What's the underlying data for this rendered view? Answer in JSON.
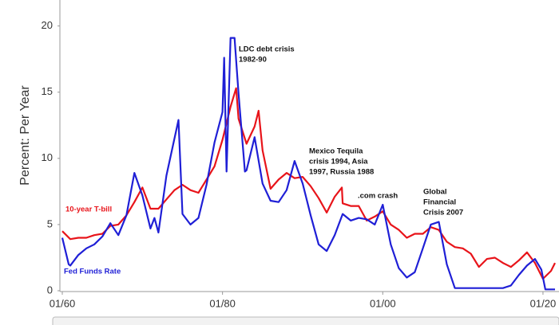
{
  "chart_data": {
    "type": "line",
    "y_label": "Percent: Per Year",
    "xlim": [
      1960,
      2022
    ],
    "ylim": [
      0,
      21
    ],
    "xticks": [
      {
        "value": 1960,
        "label": "01/60"
      },
      {
        "value": 1980,
        "label": "01/80"
      },
      {
        "value": 2000,
        "label": "01/00"
      },
      {
        "value": 2020,
        "label": "01/20"
      }
    ],
    "yticks": [
      0,
      5,
      10,
      15,
      20
    ],
    "annotations": [
      {
        "lines": [
          "LDC debt crisis",
          "1982-90"
        ]
      },
      {
        "lines": [
          "Mexico Tequila",
          "crisis 1994, Asia",
          "1997, Russia 1988"
        ]
      },
      {
        "lines": [
          ".com crash"
        ]
      },
      {
        "lines": [
          "Global",
          "Financial",
          "Crisis 2007"
        ]
      }
    ],
    "series": [
      {
        "name": "10-year T-bill",
        "color": "#e8141a",
        "x": [
          1960,
          1961,
          1962,
          1963,
          1964,
          1965,
          1966,
          1967,
          1968,
          1969,
          1970,
          1971,
          1972,
          1973,
          1974,
          1975,
          1976,
          1977,
          1978,
          1979,
          1980,
          1981,
          1981.7,
          1982,
          1983,
          1984,
          1984.5,
          1985,
          1986,
          1987,
          1988,
          1989,
          1990,
          1991,
          1992,
          1993,
          1994,
          1994.9,
          1995,
          1996,
          1997,
          1998,
          1999,
          2000,
          2001,
          2002,
          2003,
          2004,
          2005,
          2006,
          2007,
          2008,
          2009,
          2010,
          2011,
          2012,
          2013,
          2014,
          2015,
          2016,
          2017,
          2018,
          2019,
          2020,
          2021,
          2021.5
        ],
        "values": [
          4.5,
          3.9,
          4.0,
          4.0,
          4.2,
          4.3,
          4.9,
          5.0,
          5.7,
          6.7,
          7.8,
          6.2,
          6.2,
          6.9,
          7.6,
          8.0,
          7.6,
          7.4,
          8.4,
          9.4,
          11.4,
          13.9,
          15.3,
          13.0,
          11.1,
          12.4,
          13.6,
          10.6,
          7.7,
          8.4,
          8.9,
          8.5,
          8.6,
          7.9,
          7.0,
          5.9,
          7.1,
          7.8,
          6.6,
          6.4,
          6.4,
          5.3,
          5.6,
          6.0,
          5.0,
          4.6,
          4.0,
          4.3,
          4.3,
          4.8,
          4.6,
          3.7,
          3.3,
          3.2,
          2.8,
          1.8,
          2.4,
          2.5,
          2.1,
          1.8,
          2.3,
          2.9,
          2.1,
          0.9,
          1.5,
          2.1
        ]
      },
      {
        "name": "Fed Funds Rate",
        "color": "#1f1fd6",
        "x": [
          1960,
          1960.8,
          1961,
          1962,
          1963,
          1964,
          1965,
          1966,
          1967,
          1968,
          1969,
          1970,
          1971,
          1971.5,
          1972,
          1973,
          1974.5,
          1975,
          1976,
          1977,
          1978,
          1979,
          1980,
          1980.2,
          1980.5,
          1981,
          1981.5,
          1982,
          1982.8,
          1983,
          1984,
          1985,
          1986,
          1987,
          1988,
          1989,
          1990,
          1991,
          1992,
          1993,
          1994,
          1995,
          1996,
          1997,
          1998,
          1999,
          2000,
          2001,
          2002,
          2003,
          2004,
          2005,
          2006,
          2007,
          2008,
          2009,
          2015,
          2016,
          2017,
          2018,
          2019,
          2019.8,
          2020.3,
          2021.5
        ],
        "values": [
          4.0,
          2.0,
          1.9,
          2.7,
          3.2,
          3.5,
          4.1,
          5.1,
          4.2,
          5.7,
          8.9,
          7.2,
          4.7,
          5.5,
          4.4,
          8.7,
          12.9,
          5.8,
          5.0,
          5.5,
          8.0,
          11.2,
          13.5,
          17.6,
          9.0,
          19.1,
          19.1,
          14.9,
          9.0,
          9.1,
          11.6,
          8.1,
          6.8,
          6.7,
          7.6,
          9.8,
          8.1,
          5.7,
          3.5,
          3.0,
          4.2,
          5.8,
          5.3,
          5.5,
          5.4,
          5.0,
          6.5,
          3.5,
          1.7,
          1.0,
          1.4,
          3.2,
          5.0,
          5.2,
          2.0,
          0.2,
          0.2,
          0.4,
          1.2,
          1.9,
          2.4,
          1.6,
          0.1,
          0.1
        ]
      }
    ]
  }
}
